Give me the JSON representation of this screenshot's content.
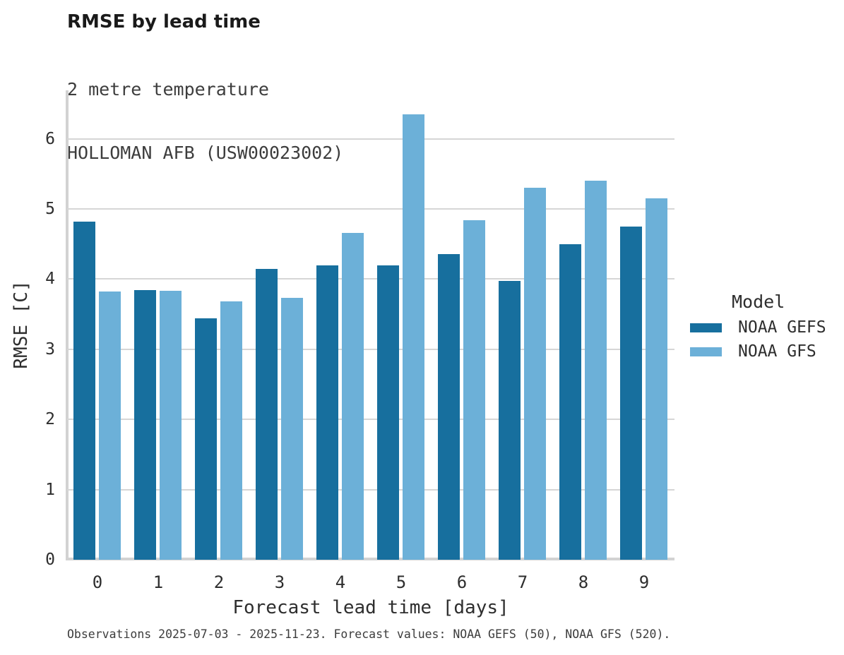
{
  "chart_data": {
    "type": "bar",
    "title": "RMSE by lead time",
    "subtitle": [
      "2 metre temperature",
      "HOLLOMAN AFB (USW00023002)"
    ],
    "categories": [
      0,
      1,
      2,
      3,
      4,
      5,
      6,
      7,
      8,
      9
    ],
    "series": [
      {
        "name": "NOAA GEFS",
        "color": "#176F9E",
        "values": [
          4.82,
          3.84,
          3.44,
          4.15,
          4.2,
          4.2,
          4.36,
          3.97,
          4.5,
          4.75
        ]
      },
      {
        "name": "NOAA GFS",
        "color": "#6CB0D8",
        "values": [
          3.82,
          3.83,
          3.68,
          3.73,
          4.66,
          6.35,
          4.84,
          5.3,
          5.4,
          5.15
        ]
      }
    ],
    "xlabel": "Forecast lead time [days]",
    "ylabel": "RMSE [C]",
    "ylim": [
      0,
      6.67
    ],
    "yticks": [
      0,
      1,
      2,
      3,
      4,
      5,
      6
    ],
    "grid": true,
    "legend_title": "Model",
    "legend_position": "right"
  },
  "caption": "Observations 2025-07-03 - 2025-11-23. Forecast values: NOAA GEFS (50), NOAA GFS (520)."
}
